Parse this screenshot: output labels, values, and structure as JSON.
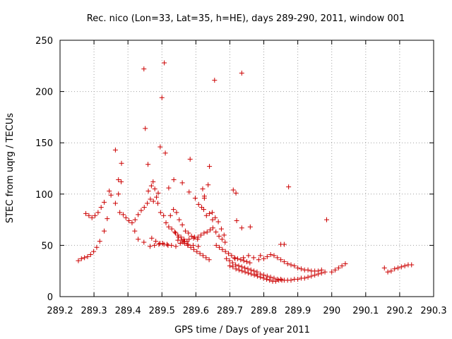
{
  "chart_data": {
    "type": "scatter",
    "title": "Rec. nico (Lon=33, Lat=35, h=HE), days 289-290, 2011, window 001",
    "xlabel": "GPS time / Days of year 2011",
    "ylabel": "STEC from uqrg / TECUs",
    "xlim": [
      289.2,
      290.3
    ],
    "ylim": [
      0,
      250
    ],
    "x_ticks": [
      "289.2",
      "289.3",
      "289.4",
      "289.5",
      "289.6",
      "289.7",
      "289.8",
      "289.9",
      "290",
      "290.1",
      "290.2",
      "290.3"
    ],
    "y_ticks": [
      "0",
      "50",
      "100",
      "150",
      "200",
      "250"
    ],
    "grid": true,
    "marker": "+",
    "marker_color": "#cc0000",
    "points": [
      [
        289.254,
        35
      ],
      [
        289.263,
        37
      ],
      [
        289.272,
        38
      ],
      [
        289.281,
        39
      ],
      [
        289.29,
        41
      ],
      [
        289.299,
        44
      ],
      [
        289.308,
        48
      ],
      [
        289.317,
        54
      ],
      [
        289.33,
        64
      ],
      [
        289.339,
        76
      ],
      [
        289.276,
        81
      ],
      [
        289.285,
        79
      ],
      [
        289.294,
        77
      ],
      [
        289.303,
        79
      ],
      [
        289.312,
        82
      ],
      [
        289.321,
        87
      ],
      [
        289.33,
        92
      ],
      [
        289.345,
        103
      ],
      [
        289.35,
        99
      ],
      [
        289.363,
        91
      ],
      [
        289.372,
        100
      ],
      [
        289.372,
        114
      ],
      [
        289.38,
        112
      ],
      [
        289.363,
        143
      ],
      [
        289.381,
        130
      ],
      [
        289.376,
        82
      ],
      [
        289.386,
        80
      ],
      [
        289.394,
        77
      ],
      [
        289.403,
        74
      ],
      [
        289.412,
        72
      ],
      [
        289.421,
        75
      ],
      [
        289.43,
        80
      ],
      [
        289.439,
        84
      ],
      [
        289.448,
        87
      ],
      [
        289.457,
        91
      ],
      [
        289.466,
        95
      ],
      [
        289.475,
        93
      ],
      [
        289.484,
        97
      ],
      [
        289.42,
        64
      ],
      [
        289.43,
        56
      ],
      [
        289.447,
        53
      ],
      [
        289.465,
        49
      ],
      [
        289.478,
        50
      ],
      [
        289.491,
        51
      ],
      [
        289.502,
        52
      ],
      [
        289.46,
        103
      ],
      [
        289.469,
        108
      ],
      [
        289.474,
        112
      ],
      [
        289.459,
        129
      ],
      [
        289.451,
        164
      ],
      [
        289.479,
        105
      ],
      [
        289.489,
        101
      ],
      [
        289.488,
        91
      ],
      [
        289.496,
        82
      ],
      [
        289.505,
        79
      ],
      [
        289.512,
        72
      ],
      [
        289.52,
        68
      ],
      [
        289.529,
        66
      ],
      [
        289.538,
        63
      ],
      [
        289.547,
        60
      ],
      [
        289.556,
        58
      ],
      [
        289.565,
        56
      ],
      [
        289.574,
        54
      ],
      [
        289.515,
        51
      ],
      [
        289.528,
        50
      ],
      [
        289.541,
        49
      ],
      [
        289.554,
        52
      ],
      [
        289.567,
        54
      ],
      [
        289.58,
        56
      ],
      [
        289.593,
        57
      ],
      [
        289.606,
        58
      ],
      [
        289.615,
        60
      ],
      [
        289.624,
        62
      ],
      [
        289.633,
        63
      ],
      [
        289.642,
        65
      ],
      [
        289.525,
        79
      ],
      [
        289.534,
        85
      ],
      [
        289.543,
        82
      ],
      [
        289.551,
        75
      ],
      [
        289.56,
        70
      ],
      [
        289.569,
        64
      ],
      [
        289.578,
        62
      ],
      [
        289.587,
        59
      ],
      [
        289.596,
        58
      ],
      [
        289.605,
        56
      ],
      [
        289.54,
        62
      ],
      [
        289.549,
        58
      ],
      [
        289.558,
        55
      ],
      [
        289.567,
        52
      ],
      [
        289.576,
        50
      ],
      [
        289.585,
        48
      ],
      [
        289.594,
        46
      ],
      [
        289.603,
        44
      ],
      [
        289.612,
        42
      ],
      [
        289.621,
        40
      ],
      [
        289.63,
        38
      ],
      [
        289.639,
        36
      ],
      [
        289.52,
        106
      ],
      [
        289.535,
        114
      ],
      [
        289.56,
        111
      ],
      [
        289.58,
        102
      ],
      [
        289.598,
        96
      ],
      [
        289.608,
        90
      ],
      [
        289.617,
        87
      ],
      [
        289.623,
        85
      ],
      [
        289.631,
        79
      ],
      [
        289.64,
        81
      ],
      [
        289.649,
        75
      ],
      [
        289.625,
        98
      ],
      [
        289.62,
        105
      ],
      [
        289.636,
        109
      ],
      [
        289.64,
        127
      ],
      [
        289.625,
        96
      ],
      [
        289.648,
        82
      ],
      [
        289.657,
        77
      ],
      [
        289.666,
        73
      ],
      [
        289.675,
        66
      ],
      [
        289.683,
        60
      ],
      [
        289.65,
        67
      ],
      [
        289.659,
        63
      ],
      [
        289.668,
        59
      ],
      [
        289.677,
        56
      ],
      [
        289.686,
        53
      ],
      [
        289.66,
        50
      ],
      [
        289.669,
        48
      ],
      [
        289.678,
        46
      ],
      [
        289.687,
        44
      ],
      [
        289.696,
        42
      ],
      [
        289.705,
        40
      ],
      [
        289.714,
        38
      ],
      [
        289.723,
        37
      ],
      [
        289.732,
        36
      ],
      [
        289.741,
        35
      ],
      [
        289.75,
        34
      ],
      [
        289.759,
        33
      ],
      [
        289.69,
        37
      ],
      [
        289.699,
        35
      ],
      [
        289.708,
        33
      ],
      [
        289.717,
        31
      ],
      [
        289.726,
        30
      ],
      [
        289.735,
        29
      ],
      [
        289.744,
        28
      ],
      [
        289.753,
        27
      ],
      [
        289.762,
        26
      ],
      [
        289.771,
        25
      ],
      [
        289.78,
        24
      ],
      [
        289.7,
        30
      ],
      [
        289.709,
        29
      ],
      [
        289.718,
        27
      ],
      [
        289.727,
        26
      ],
      [
        289.736,
        25
      ],
      [
        289.745,
        24
      ],
      [
        289.754,
        23
      ],
      [
        289.763,
        22
      ],
      [
        289.772,
        21
      ],
      [
        289.781,
        20
      ],
      [
        289.79,
        19
      ],
      [
        289.799,
        18
      ],
      [
        289.808,
        17
      ],
      [
        289.817,
        16
      ],
      [
        289.826,
        15
      ],
      [
        289.835,
        15
      ],
      [
        289.844,
        16
      ],
      [
        289.853,
        16
      ],
      [
        289.71,
        104
      ],
      [
        289.718,
        101
      ],
      [
        289.72,
        74
      ],
      [
        289.735,
        67
      ],
      [
        289.735,
        218
      ],
      [
        289.76,
        68
      ],
      [
        289.715,
        37
      ],
      [
        289.74,
        38
      ],
      [
        289.755,
        40
      ],
      [
        289.77,
        38
      ],
      [
        289.785,
        36
      ],
      [
        289.79,
        40
      ],
      [
        289.8,
        37
      ],
      [
        289.81,
        39
      ],
      [
        289.82,
        41
      ],
      [
        289.83,
        40
      ],
      [
        289.84,
        38
      ],
      [
        289.85,
        36
      ],
      [
        289.86,
        34
      ],
      [
        289.87,
        32
      ],
      [
        289.88,
        31
      ],
      [
        289.89,
        30
      ],
      [
        289.9,
        28
      ],
      [
        289.91,
        27
      ],
      [
        289.92,
        26
      ],
      [
        289.93,
        26
      ],
      [
        289.94,
        25
      ],
      [
        289.95,
        25
      ],
      [
        289.96,
        25
      ],
      [
        289.97,
        26
      ],
      [
        289.85,
        51
      ],
      [
        289.86,
        51
      ],
      [
        289.873,
        107
      ],
      [
        289.78,
        22
      ],
      [
        289.79,
        22
      ],
      [
        289.8,
        21
      ],
      [
        289.81,
        20
      ],
      [
        289.82,
        19
      ],
      [
        289.83,
        18
      ],
      [
        289.84,
        17
      ],
      [
        289.85,
        17
      ],
      [
        289.86,
        16
      ],
      [
        289.87,
        16
      ],
      [
        289.88,
        16
      ],
      [
        289.89,
        17
      ],
      [
        289.9,
        17
      ],
      [
        289.91,
        18
      ],
      [
        289.92,
        18
      ],
      [
        289.93,
        19
      ],
      [
        289.94,
        20
      ],
      [
        289.95,
        21
      ],
      [
        289.96,
        22
      ],
      [
        289.97,
        23
      ],
      [
        289.98,
        24
      ],
      [
        289.985,
        75
      ],
      [
        290.0,
        24
      ],
      [
        290.01,
        26
      ],
      [
        290.02,
        28
      ],
      [
        290.03,
        30
      ],
      [
        290.04,
        32
      ],
      [
        290.155,
        28
      ],
      [
        290.165,
        24
      ],
      [
        290.175,
        25
      ],
      [
        290.185,
        27
      ],
      [
        290.195,
        28
      ],
      [
        290.205,
        29
      ],
      [
        290.215,
        30
      ],
      [
        290.225,
        31
      ],
      [
        290.235,
        31
      ],
      [
        289.447,
        222
      ],
      [
        289.5,
        194
      ],
      [
        289.495,
        146
      ],
      [
        289.51,
        140
      ],
      [
        289.507,
        228
      ],
      [
        289.583,
        134
      ],
      [
        289.655,
        211
      ],
      [
        289.547,
        55
      ],
      [
        289.562,
        53
      ],
      [
        289.577,
        51
      ],
      [
        289.592,
        50
      ],
      [
        289.607,
        49
      ],
      [
        289.47,
        57
      ],
      [
        289.482,
        54
      ],
      [
        289.494,
        52
      ],
      [
        289.506,
        51
      ],
      [
        289.518,
        50
      ]
    ]
  }
}
